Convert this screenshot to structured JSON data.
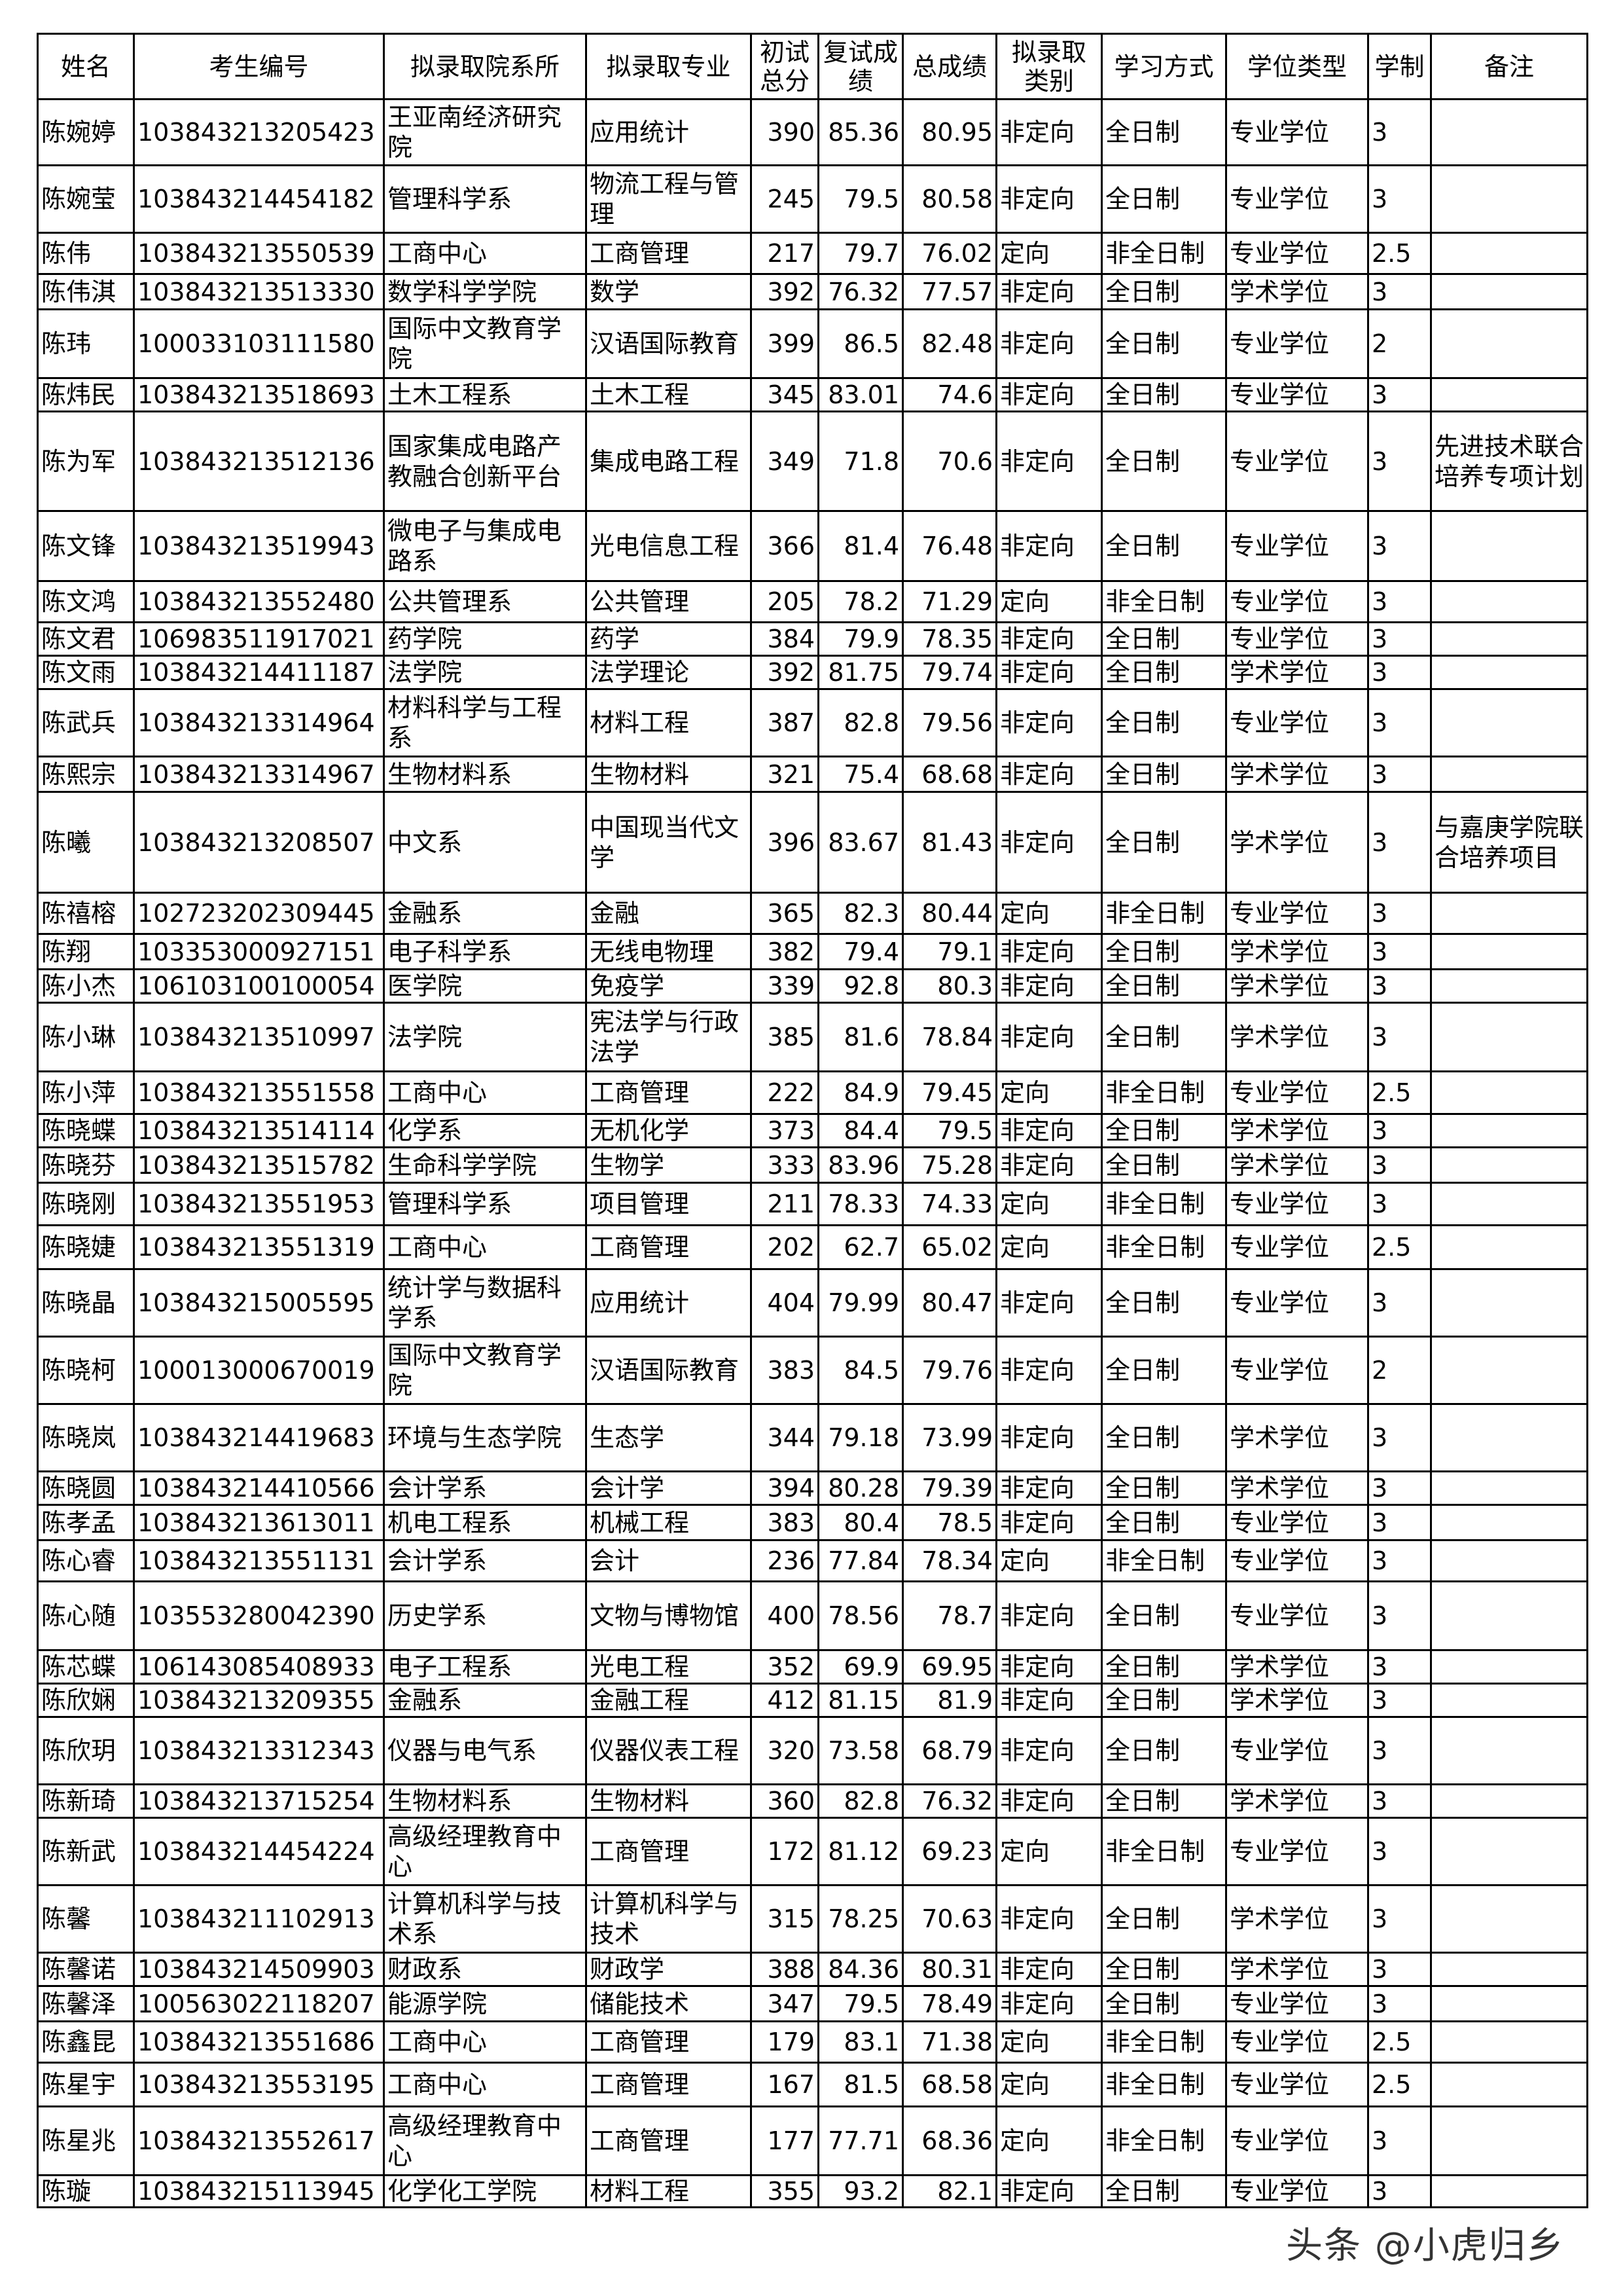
{
  "headers": [
    "姓名",
    "考生编号",
    "拟录取院系所",
    "拟录取专业",
    "初试总分",
    "复试成绩",
    "总成绩",
    "拟录取类别",
    "学习方式",
    "学位类型",
    "学制",
    "备注"
  ],
  "rows": [
    [
      "陈婉婷",
      "103843213205423",
      "王亚南经济研究院",
      "应用统计",
      "390",
      "85.36",
      "80.95",
      "非定向",
      "全日制",
      "专业学位",
      "3",
      ""
    ],
    [
      "陈婉莹",
      "103843214454182",
      "管理科学系",
      "物流工程与管理",
      "245",
      "79.5",
      "80.58",
      "非定向",
      "全日制",
      "专业学位",
      "3",
      ""
    ],
    [
      "陈伟",
      "103843213550539",
      "工商中心",
      "工商管理",
      "217",
      "79.7",
      "76.02",
      "定向",
      "非全日制",
      "专业学位",
      "2.5",
      ""
    ],
    [
      "陈伟淇",
      "103843213513330",
      "数学科学学院",
      "数学",
      "392",
      "76.32",
      "77.57",
      "非定向",
      "全日制",
      "学术学位",
      "3",
      ""
    ],
    [
      "陈玮",
      "100033103111580",
      "国际中文教育学院",
      "汉语国际教育",
      "399",
      "86.5",
      "82.48",
      "非定向",
      "全日制",
      "专业学位",
      "2",
      ""
    ],
    [
      "陈炜民",
      "103843213518693",
      "土木工程系",
      "土木工程",
      "345",
      "83.01",
      "74.6",
      "非定向",
      "全日制",
      "专业学位",
      "3",
      ""
    ],
    [
      "陈为军",
      "103843213512136",
      "国家集成电路产教融合创新平台",
      "集成电路工程",
      "349",
      "71.8",
      "70.6",
      "非定向",
      "全日制",
      "专业学位",
      "3",
      "先进技术联合培养专项计划"
    ],
    [
      "陈文锋",
      "103843213519943",
      "微电子与集成电路系",
      "光电信息工程",
      "366",
      "81.4",
      "76.48",
      "非定向",
      "全日制",
      "专业学位",
      "3",
      ""
    ],
    [
      "陈文鸿",
      "103843213552480",
      "公共管理系",
      "公共管理",
      "205",
      "78.2",
      "71.29",
      "定向",
      "非全日制",
      "专业学位",
      "3",
      ""
    ],
    [
      "陈文君",
      "106983511917021",
      "药学院",
      "药学",
      "384",
      "79.9",
      "78.35",
      "非定向",
      "全日制",
      "专业学位",
      "3",
      ""
    ],
    [
      "陈文雨",
      "103843214411187",
      "法学院",
      "法学理论",
      "392",
      "81.75",
      "79.74",
      "非定向",
      "全日制",
      "学术学位",
      "3",
      ""
    ],
    [
      "陈武兵",
      "103843213314964",
      "材料科学与工程系",
      "材料工程",
      "387",
      "82.8",
      "79.56",
      "非定向",
      "全日制",
      "专业学位",
      "3",
      ""
    ],
    [
      "陈熙宗",
      "103843213314967",
      "生物材料系",
      "生物材料",
      "321",
      "75.4",
      "68.68",
      "非定向",
      "全日制",
      "学术学位",
      "3",
      ""
    ],
    [
      "陈曦",
      "103843213208507",
      "中文系",
      "中国现当代文学",
      "396",
      "83.67",
      "81.43",
      "非定向",
      "全日制",
      "学术学位",
      "3",
      "与嘉庚学院联合培养项目"
    ],
    [
      "陈禧榕",
      "102723202309445",
      "金融系",
      "金融",
      "365",
      "82.3",
      "80.44",
      "定向",
      "非全日制",
      "专业学位",
      "3",
      ""
    ],
    [
      "陈翔",
      "103353000927151",
      "电子科学系",
      "无线电物理",
      "382",
      "79.4",
      "79.1",
      "非定向",
      "全日制",
      "学术学位",
      "3",
      ""
    ],
    [
      "陈小杰",
      "106103100100054",
      "医学院",
      "免疫学",
      "339",
      "92.8",
      "80.3",
      "非定向",
      "全日制",
      "学术学位",
      "3",
      ""
    ],
    [
      "陈小琳",
      "103843213510997",
      "法学院",
      "宪法学与行政法学",
      "385",
      "81.6",
      "78.84",
      "非定向",
      "全日制",
      "学术学位",
      "3",
      ""
    ],
    [
      "陈小萍",
      "103843213551558",
      "工商中心",
      "工商管理",
      "222",
      "84.9",
      "79.45",
      "定向",
      "非全日制",
      "专业学位",
      "2.5",
      ""
    ],
    [
      "陈晓蝶",
      "103843213514114",
      "化学系",
      "无机化学",
      "373",
      "84.4",
      "79.5",
      "非定向",
      "全日制",
      "学术学位",
      "3",
      ""
    ],
    [
      "陈晓芬",
      "103843213515782",
      "生命科学学院",
      "生物学",
      "333",
      "83.96",
      "75.28",
      "非定向",
      "全日制",
      "学术学位",
      "3",
      ""
    ],
    [
      "陈晓刚",
      "103843213551953",
      "管理科学系",
      "项目管理",
      "211",
      "78.33",
      "74.33",
      "定向",
      "非全日制",
      "专业学位",
      "3",
      ""
    ],
    [
      "陈晓婕",
      "103843213551319",
      "工商中心",
      "工商管理",
      "202",
      "62.7",
      "65.02",
      "定向",
      "非全日制",
      "专业学位",
      "2.5",
      ""
    ],
    [
      "陈晓晶",
      "103843215005595",
      "统计学与数据科学系",
      "应用统计",
      "404",
      "79.99",
      "80.47",
      "非定向",
      "全日制",
      "专业学位",
      "3",
      ""
    ],
    [
      "陈晓柯",
      "100013000670019",
      "国际中文教育学院",
      "汉语国际教育",
      "383",
      "84.5",
      "79.76",
      "非定向",
      "全日制",
      "专业学位",
      "2",
      ""
    ],
    [
      "陈晓岚",
      "103843214419683",
      "环境与生态学院",
      "生态学",
      "344",
      "79.18",
      "73.99",
      "非定向",
      "全日制",
      "学术学位",
      "3",
      ""
    ],
    [
      "陈晓圆",
      "103843214410566",
      "会计学系",
      "会计学",
      "394",
      "80.28",
      "79.39",
      "非定向",
      "全日制",
      "学术学位",
      "3",
      ""
    ],
    [
      "陈孝孟",
      "103843213613011",
      "机电工程系",
      "机械工程",
      "383",
      "80.4",
      "78.5",
      "非定向",
      "全日制",
      "专业学位",
      "3",
      ""
    ],
    [
      "陈心睿",
      "103843213551131",
      "会计学系",
      "会计",
      "236",
      "77.84",
      "78.34",
      "定向",
      "非全日制",
      "专业学位",
      "3",
      ""
    ],
    [
      "陈心随",
      "103553280042390",
      "历史学系",
      "文物与博物馆",
      "400",
      "78.56",
      "78.7",
      "非定向",
      "全日制",
      "专业学位",
      "3",
      ""
    ],
    [
      "陈芯蝶",
      "106143085408933",
      "电子工程系",
      "光电工程",
      "352",
      "69.9",
      "69.95",
      "非定向",
      "全日制",
      "学术学位",
      "3",
      ""
    ],
    [
      "陈欣娴",
      "103843213209355",
      "金融系",
      "金融工程",
      "412",
      "81.15",
      "81.9",
      "非定向",
      "全日制",
      "学术学位",
      "3",
      ""
    ],
    [
      "陈欣玥",
      "103843213312343",
      "仪器与电气系",
      "仪器仪表工程",
      "320",
      "73.58",
      "68.79",
      "非定向",
      "全日制",
      "专业学位",
      "3",
      ""
    ],
    [
      "陈新琦",
      "103843213715254",
      "生物材料系",
      "生物材料",
      "360",
      "82.8",
      "76.32",
      "非定向",
      "全日制",
      "学术学位",
      "3",
      ""
    ],
    [
      "陈新武",
      "103843214454224",
      "高级经理教育中心",
      "工商管理",
      "172",
      "81.12",
      "69.23",
      "定向",
      "非全日制",
      "专业学位",
      "3",
      ""
    ],
    [
      "陈馨",
      "103843211102913",
      "计算机科学与技术系",
      "计算机科学与技术",
      "315",
      "78.25",
      "70.63",
      "非定向",
      "全日制",
      "学术学位",
      "3",
      ""
    ],
    [
      "陈馨诺",
      "103843214509903",
      "财政系",
      "财政学",
      "388",
      "84.36",
      "80.31",
      "非定向",
      "全日制",
      "学术学位",
      "3",
      ""
    ],
    [
      "陈馨泽",
      "100563022118207",
      "能源学院",
      "储能技术",
      "347",
      "79.5",
      "78.49",
      "非定向",
      "全日制",
      "专业学位",
      "3",
      ""
    ],
    [
      "陈鑫昆",
      "103843213551686",
      "工商中心",
      "工商管理",
      "179",
      "83.1",
      "71.38",
      "定向",
      "非全日制",
      "专业学位",
      "2.5",
      ""
    ],
    [
      "陈星宇",
      "103843213553195",
      "工商中心",
      "工商管理",
      "167",
      "81.5",
      "68.58",
      "定向",
      "非全日制",
      "专业学位",
      "2.5",
      ""
    ],
    [
      "陈星兆",
      "103843213552617",
      "高级经理教育中心",
      "工商管理",
      "177",
      "77.71",
      "68.36",
      "定向",
      "非全日制",
      "专业学位",
      "3",
      ""
    ],
    [
      "陈璇",
      "103843215113945",
      "化学化工学院",
      "材料工程",
      "355",
      "93.2",
      "82.1",
      "非定向",
      "全日制",
      "专业学位",
      "3",
      ""
    ]
  ],
  "watermark": "头条 @小虎归乡"
}
